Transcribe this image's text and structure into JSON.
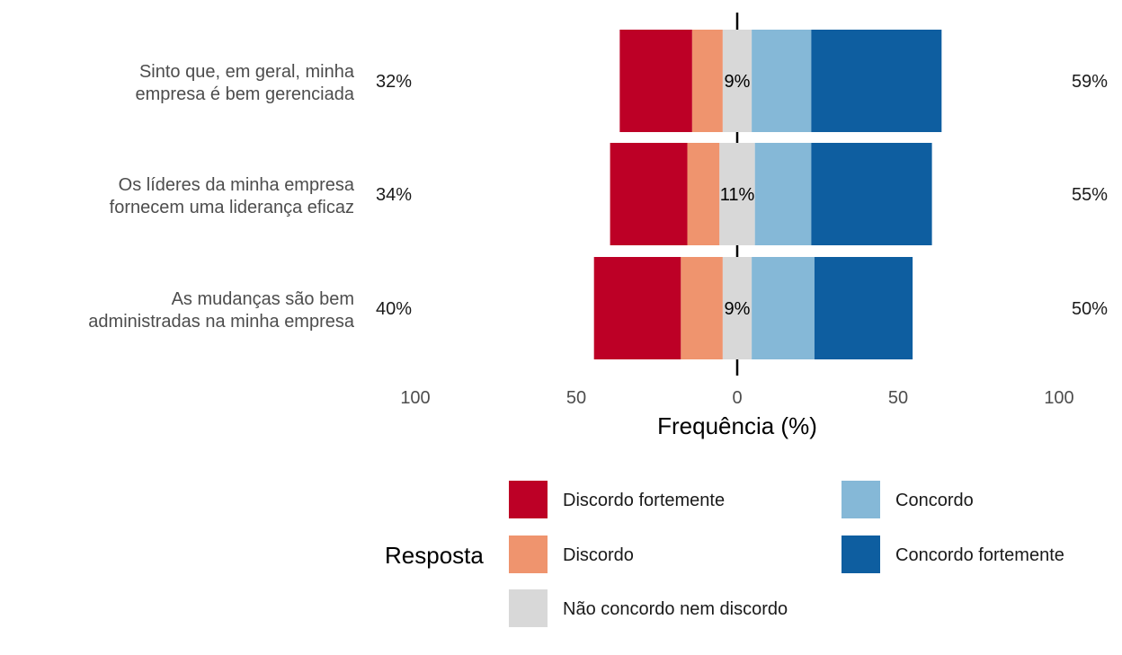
{
  "chart_data": {
    "type": "bar",
    "orientation": "horizontal",
    "stacking": "diverging",
    "xlabel": "Frequência (%)",
    "xlim": [
      -100,
      100
    ],
    "x_ticks": [
      -100,
      -50,
      0,
      50,
      100
    ],
    "x_tick_labels": [
      "100",
      "50",
      "0",
      "50",
      "100"
    ],
    "grid": false,
    "legend_title": "Resposta",
    "legend_position": "bottom",
    "categories": [
      "Sinto que, em geral, minha empresa é bem gerenciada",
      "Os líderes da minha empresa fornecem uma liderança eficaz",
      "As mudanças são bem administradas na minha empresa"
    ],
    "category_lines": [
      [
        "Sinto que, em geral, minha",
        "empresa é bem gerenciada"
      ],
      [
        "Os líderes da minha empresa",
        "fornecem uma liderança eficaz"
      ],
      [
        "As mudanças são bem",
        "administradas na minha empresa"
      ]
    ],
    "series": [
      {
        "name": "Discordo fortemente",
        "color": "#BD0026",
        "values": [
          22.5,
          24,
          27
        ]
      },
      {
        "name": "Discordo",
        "color": "#EF946E",
        "values": [
          9.5,
          10,
          13
        ]
      },
      {
        "name": "Não concordo nem discordo",
        "color": "#D8D8D8",
        "values": [
          9,
          11,
          9
        ]
      },
      {
        "name": "Concordo",
        "color": "#85B8D7",
        "values": [
          18.5,
          17.5,
          19.5
        ]
      },
      {
        "name": "Concordo fortemente",
        "color": "#0E5EA0",
        "values": [
          40.5,
          37.5,
          30.5
        ]
      }
    ],
    "low_labels": [
      "32%",
      "34%",
      "40%"
    ],
    "neutral_labels": [
      "9%",
      "11%",
      "9%"
    ],
    "high_labels": [
      "59%",
      "55%",
      "50%"
    ]
  }
}
